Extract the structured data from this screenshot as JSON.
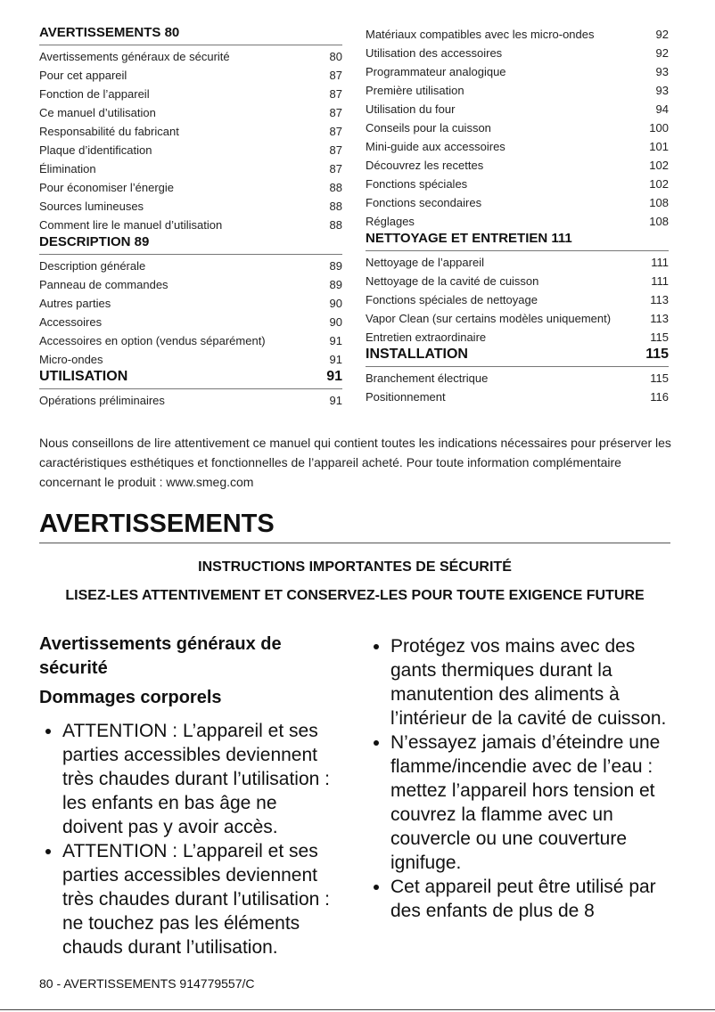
{
  "toc_left": [
    {
      "title": "AVERTISSEMENTS 80",
      "page": "",
      "items": [
        [
          "Avertissements généraux de sécurité",
          "80"
        ],
        [
          "Pour cet appareil",
          "87"
        ],
        [
          "Fonction de l’appareil",
          "87"
        ],
        [
          "Ce manuel d’utilisation",
          "87"
        ],
        [
          "Responsabilité du fabricant",
          "87"
        ],
        [
          "Plaque d’identification",
          "87"
        ],
        [
          "Élimination",
          "87"
        ],
        [
          "Pour économiser l’énergie",
          "88"
        ],
        [
          "Sources lumineuses",
          "88"
        ],
        [
          "Comment lire le manuel d’utilisation",
          "88"
        ]
      ]
    },
    {
      "title": "DESCRIPTION 89",
      "page": "",
      "items": [
        [
          "Description générale",
          "89"
        ],
        [
          "Panneau de commandes",
          "89"
        ],
        [
          "Autres parties",
          "90"
        ],
        [
          "Accessoires",
          "90"
        ],
        [
          "Accessoires en option (vendus séparément)",
          "91"
        ],
        [
          "Micro-ondes",
          "91"
        ]
      ]
    },
    {
      "title": "UTILISATION",
      "page": "91",
      "items": [
        [
          "Opérations préliminaires",
          "91"
        ]
      ]
    }
  ],
  "toc_right": [
    {
      "title": "",
      "page": "",
      "items": [
        [
          "Matériaux compatibles avec les micro-ondes",
          "92"
        ],
        [
          "Utilisation des accessoires",
          "92"
        ],
        [
          "Programmateur analogique",
          "93"
        ],
        [
          "Première utilisation",
          "93"
        ],
        [
          "Utilisation du four",
          "94"
        ],
        [
          "Conseils pour la cuisson",
          "100"
        ],
        [
          "Mini-guide aux accessoires",
          "101"
        ],
        [
          "Découvrez les recettes",
          "102"
        ],
        [
          "Fonctions spéciales",
          "102"
        ],
        [
          "Fonctions secondaires",
          "108"
        ],
        [
          "Réglages",
          "108"
        ]
      ]
    },
    {
      "title": "NETTOYAGE ET ENTRETIEN 111",
      "page": "",
      "items": [
        [
          "Nettoyage de l’appareil",
          "111"
        ],
        [
          "Nettoyage de la cavité de cuisson",
          "111"
        ],
        [
          "Fonctions spéciales de nettoyage",
          "113"
        ],
        [
          "Vapor Clean (sur certains modèles uniquement)",
          "113"
        ],
        [
          "Entretien extraordinaire",
          "115"
        ]
      ]
    },
    {
      "title": "INSTALLATION",
      "page": "115",
      "items": [
        [
          "Branchement électrique",
          "115"
        ],
        [
          "Positionnement",
          "116"
        ]
      ]
    }
  ],
  "intro": "Nous conseillons de lire attentivement ce manuel qui contient toutes les indications nécessaires pour préserver les caractéristiques esthétiques et fonctionnelles de l’appareil acheté. Pour toute information complémentaire concernant le produit : www.smeg.com",
  "section_title": "AVERTISSEMENTS",
  "instructions": "INSTRUCTIONS IMPORTANTES DE SÉCURITÉ",
  "keep": "LISEZ-LES ATTENTIVEMENT ET CONSERVEZ-LES POUR TOUTE EXIGENCE FUTURE",
  "left_col": {
    "heading": "Avertissements généraux de sécurité",
    "subheading": "Dommages corporels",
    "bullets": [
      "ATTENTION : L’appareil et ses parties accessibles deviennent très chaudes durant l’utilisation : les enfants en bas âge ne doivent pas y avoir accès.",
      "ATTENTION : L’appareil et ses parties accessibles deviennent très chaudes durant l’utilisation : ne touchez pas les éléments chauds durant l’utilisation."
    ]
  },
  "right_col": {
    "bullets": [
      "Protégez vos mains avec des gants thermiques durant la manutention des aliments à l’intérieur de la cavité de cuisson.",
      "N’essayez jamais d’éteindre une flamme/incendie avec de l’eau : mettez l’appareil hors tension et couvrez la flamme avec un couvercle ou une couverture ignifuge.",
      "Cet appareil peut être utilisé par des enfants de plus de 8"
    ]
  },
  "footer": "80  -  AVERTISSEMENTS 914779557/C"
}
